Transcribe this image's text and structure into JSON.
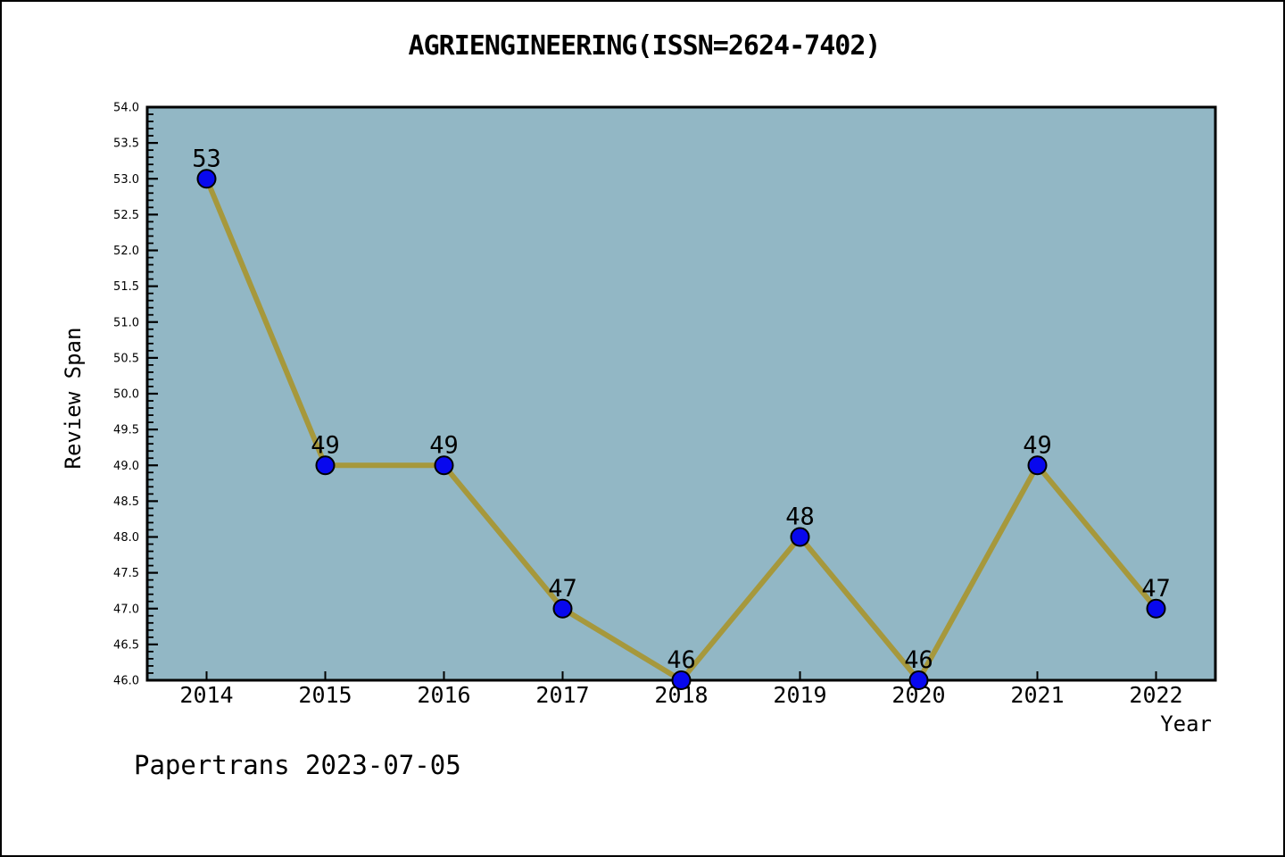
{
  "chart_data": {
    "type": "line",
    "title": "AGRIENGINEERING(ISSN=2624-7402)",
    "xlabel": "Year",
    "ylabel": "Review Span",
    "x": [
      2014,
      2015,
      2016,
      2017,
      2018,
      2019,
      2020,
      2021,
      2022
    ],
    "values": [
      53,
      49,
      49,
      47,
      46,
      48,
      46,
      49,
      47
    ],
    "point_labels": [
      "53",
      "49",
      "49",
      "47",
      "46",
      "48",
      "46",
      "49",
      "47"
    ],
    "xlim": [
      2013.5,
      2022.5
    ],
    "ylim": [
      46.0,
      54.0
    ],
    "y_major_step": 0.5,
    "y_minor_step": 0.1,
    "y_tick_decimals": 1,
    "grid": false,
    "legend": null,
    "colors": {
      "plot_bg": "#92B7C5",
      "line": "#A6983C",
      "marker_fill": "#0808EE",
      "marker_edge": "#000000",
      "text": "#000000",
      "spine": "#000000"
    }
  },
  "footer": {
    "text": "Papertrans 2023-07-05"
  }
}
